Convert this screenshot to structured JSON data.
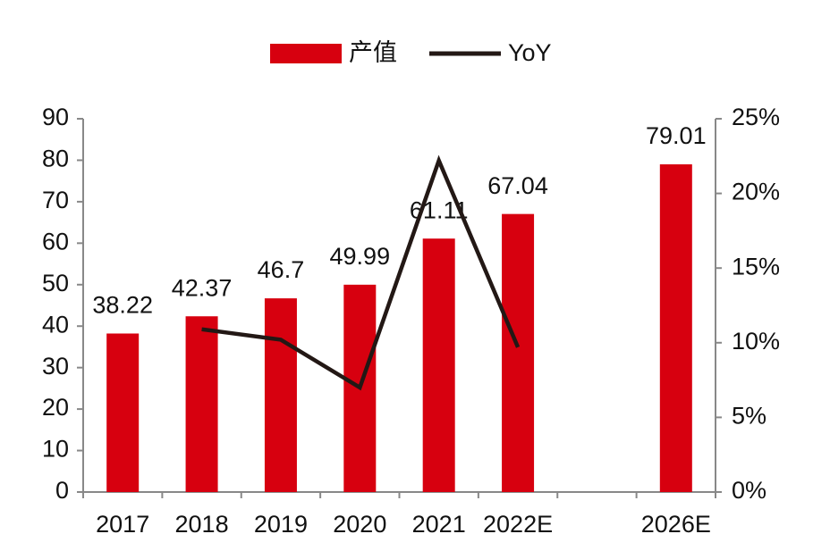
{
  "chart_data": {
    "type": "bar+line",
    "categories": [
      "2017",
      "2018",
      "2019",
      "2020",
      "2021",
      "2022E",
      null,
      "2026E"
    ],
    "series": [
      {
        "name": "产值",
        "color": "#d7000f",
        "type": "bar",
        "values": [
          38.22,
          42.37,
          46.7,
          49.99,
          61.11,
          67.04,
          null,
          79.01
        ]
      },
      {
        "name": "YoY",
        "color": "#231815",
        "type": "line",
        "axis": "y2",
        "values": [
          null,
          10.9,
          10.2,
          7.0,
          22.2,
          9.7,
          null,
          null
        ]
      }
    ],
    "ylim": [
      0,
      90
    ],
    "yticks": [
      0,
      10,
      20,
      30,
      40,
      50,
      60,
      70,
      80,
      90
    ],
    "y2lim": [
      0,
      25
    ],
    "y2ticks": [
      {
        "value": 0,
        "label": "0%"
      },
      {
        "value": 5,
        "label": "5%"
      },
      {
        "value": 10,
        "label": "10%"
      },
      {
        "value": 15,
        "label": "15%"
      },
      {
        "value": 20,
        "label": "20%"
      },
      {
        "value": 25,
        "label": "25%"
      }
    ],
    "legend": "top"
  }
}
